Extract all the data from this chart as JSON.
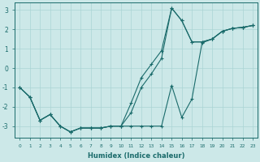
{
  "xlabel": "Humidex (Indice chaleur)",
  "bg_color": "#cce8e8",
  "grid_color": "#aad4d4",
  "line_color": "#1a6b6b",
  "xlim": [
    -0.5,
    23.5
  ],
  "ylim": [
    -3.6,
    3.4
  ],
  "xticks": [
    0,
    1,
    2,
    3,
    4,
    5,
    6,
    7,
    8,
    9,
    10,
    11,
    12,
    13,
    14,
    15,
    16,
    17,
    18,
    19,
    20,
    21,
    22,
    23
  ],
  "yticks": [
    -3,
    -2,
    -1,
    0,
    1,
    2,
    3
  ],
  "line1_x": [
    0,
    1,
    2,
    3,
    4,
    5,
    6,
    7,
    8,
    9,
    10,
    11,
    12,
    13,
    14,
    15,
    16,
    17,
    18,
    19,
    20,
    21,
    22,
    23
  ],
  "line1_y": [
    -1.0,
    -1.5,
    -2.7,
    -2.4,
    -3.0,
    -3.3,
    -3.1,
    -3.1,
    -3.1,
    -3.0,
    -3.0,
    -3.0,
    -3.0,
    -3.0,
    -3.0,
    -0.9,
    -2.55,
    -1.6,
    1.3,
    1.5,
    1.9,
    2.05,
    2.1,
    2.2
  ],
  "line2_x": [
    0,
    1,
    2,
    3,
    4,
    5,
    6,
    7,
    8,
    9,
    10,
    11,
    12,
    13,
    14,
    15,
    16,
    17,
    18,
    19,
    20,
    21,
    22,
    23
  ],
  "line2_y": [
    -1.0,
    -1.5,
    -2.7,
    -2.4,
    -3.0,
    -3.3,
    -3.1,
    -3.1,
    -3.1,
    -3.0,
    -3.0,
    -2.3,
    -1.0,
    -0.3,
    0.5,
    3.1,
    2.45,
    1.35,
    1.35,
    1.5,
    1.9,
    2.05,
    2.1,
    2.2
  ],
  "line3_x": [
    0,
    1,
    2,
    3,
    4,
    5,
    6,
    7,
    8,
    9,
    10,
    11,
    12,
    13,
    14,
    15,
    16,
    17,
    18,
    19,
    20,
    21,
    22,
    23
  ],
  "line3_y": [
    -1.0,
    -1.5,
    -2.7,
    -2.4,
    -3.0,
    -3.3,
    -3.1,
    -3.1,
    -3.1,
    -3.0,
    -3.0,
    -1.8,
    -0.5,
    0.2,
    0.9,
    3.1,
    2.45,
    1.35,
    1.35,
    1.5,
    1.9,
    2.05,
    2.1,
    2.2
  ]
}
